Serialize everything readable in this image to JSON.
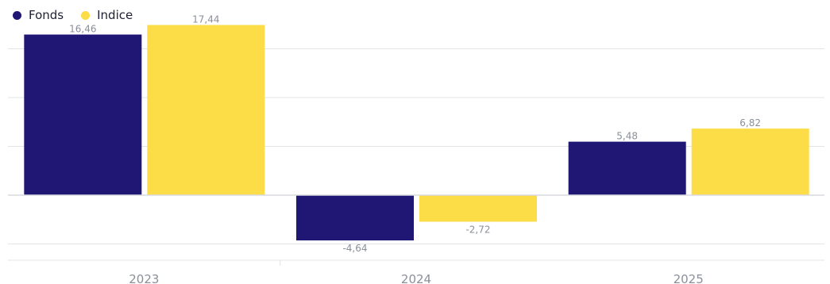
{
  "chart_data": {
    "type": "bar",
    "categories": [
      "2023",
      "2024",
      "2025"
    ],
    "series": [
      {
        "name": "Fonds",
        "values": [
          16.46,
          -4.64,
          5.48
        ],
        "labels": [
          "16,46",
          "-4,64",
          "5,48"
        ],
        "color": "#201674"
      },
      {
        "name": "Indice",
        "values": [
          17.44,
          -2.72,
          6.82
        ],
        "labels": [
          "17,44",
          "-2,72",
          "6,82"
        ],
        "color": "#fcdc47"
      }
    ],
    "ylim": [
      -8,
      18
    ],
    "grid": true,
    "legend_position": "top-left",
    "colors": {
      "grid": "#e2e4e8",
      "zero_line": "#d8dade",
      "axis_text": "#8a8f99",
      "data_label": "#8a8f99"
    }
  }
}
